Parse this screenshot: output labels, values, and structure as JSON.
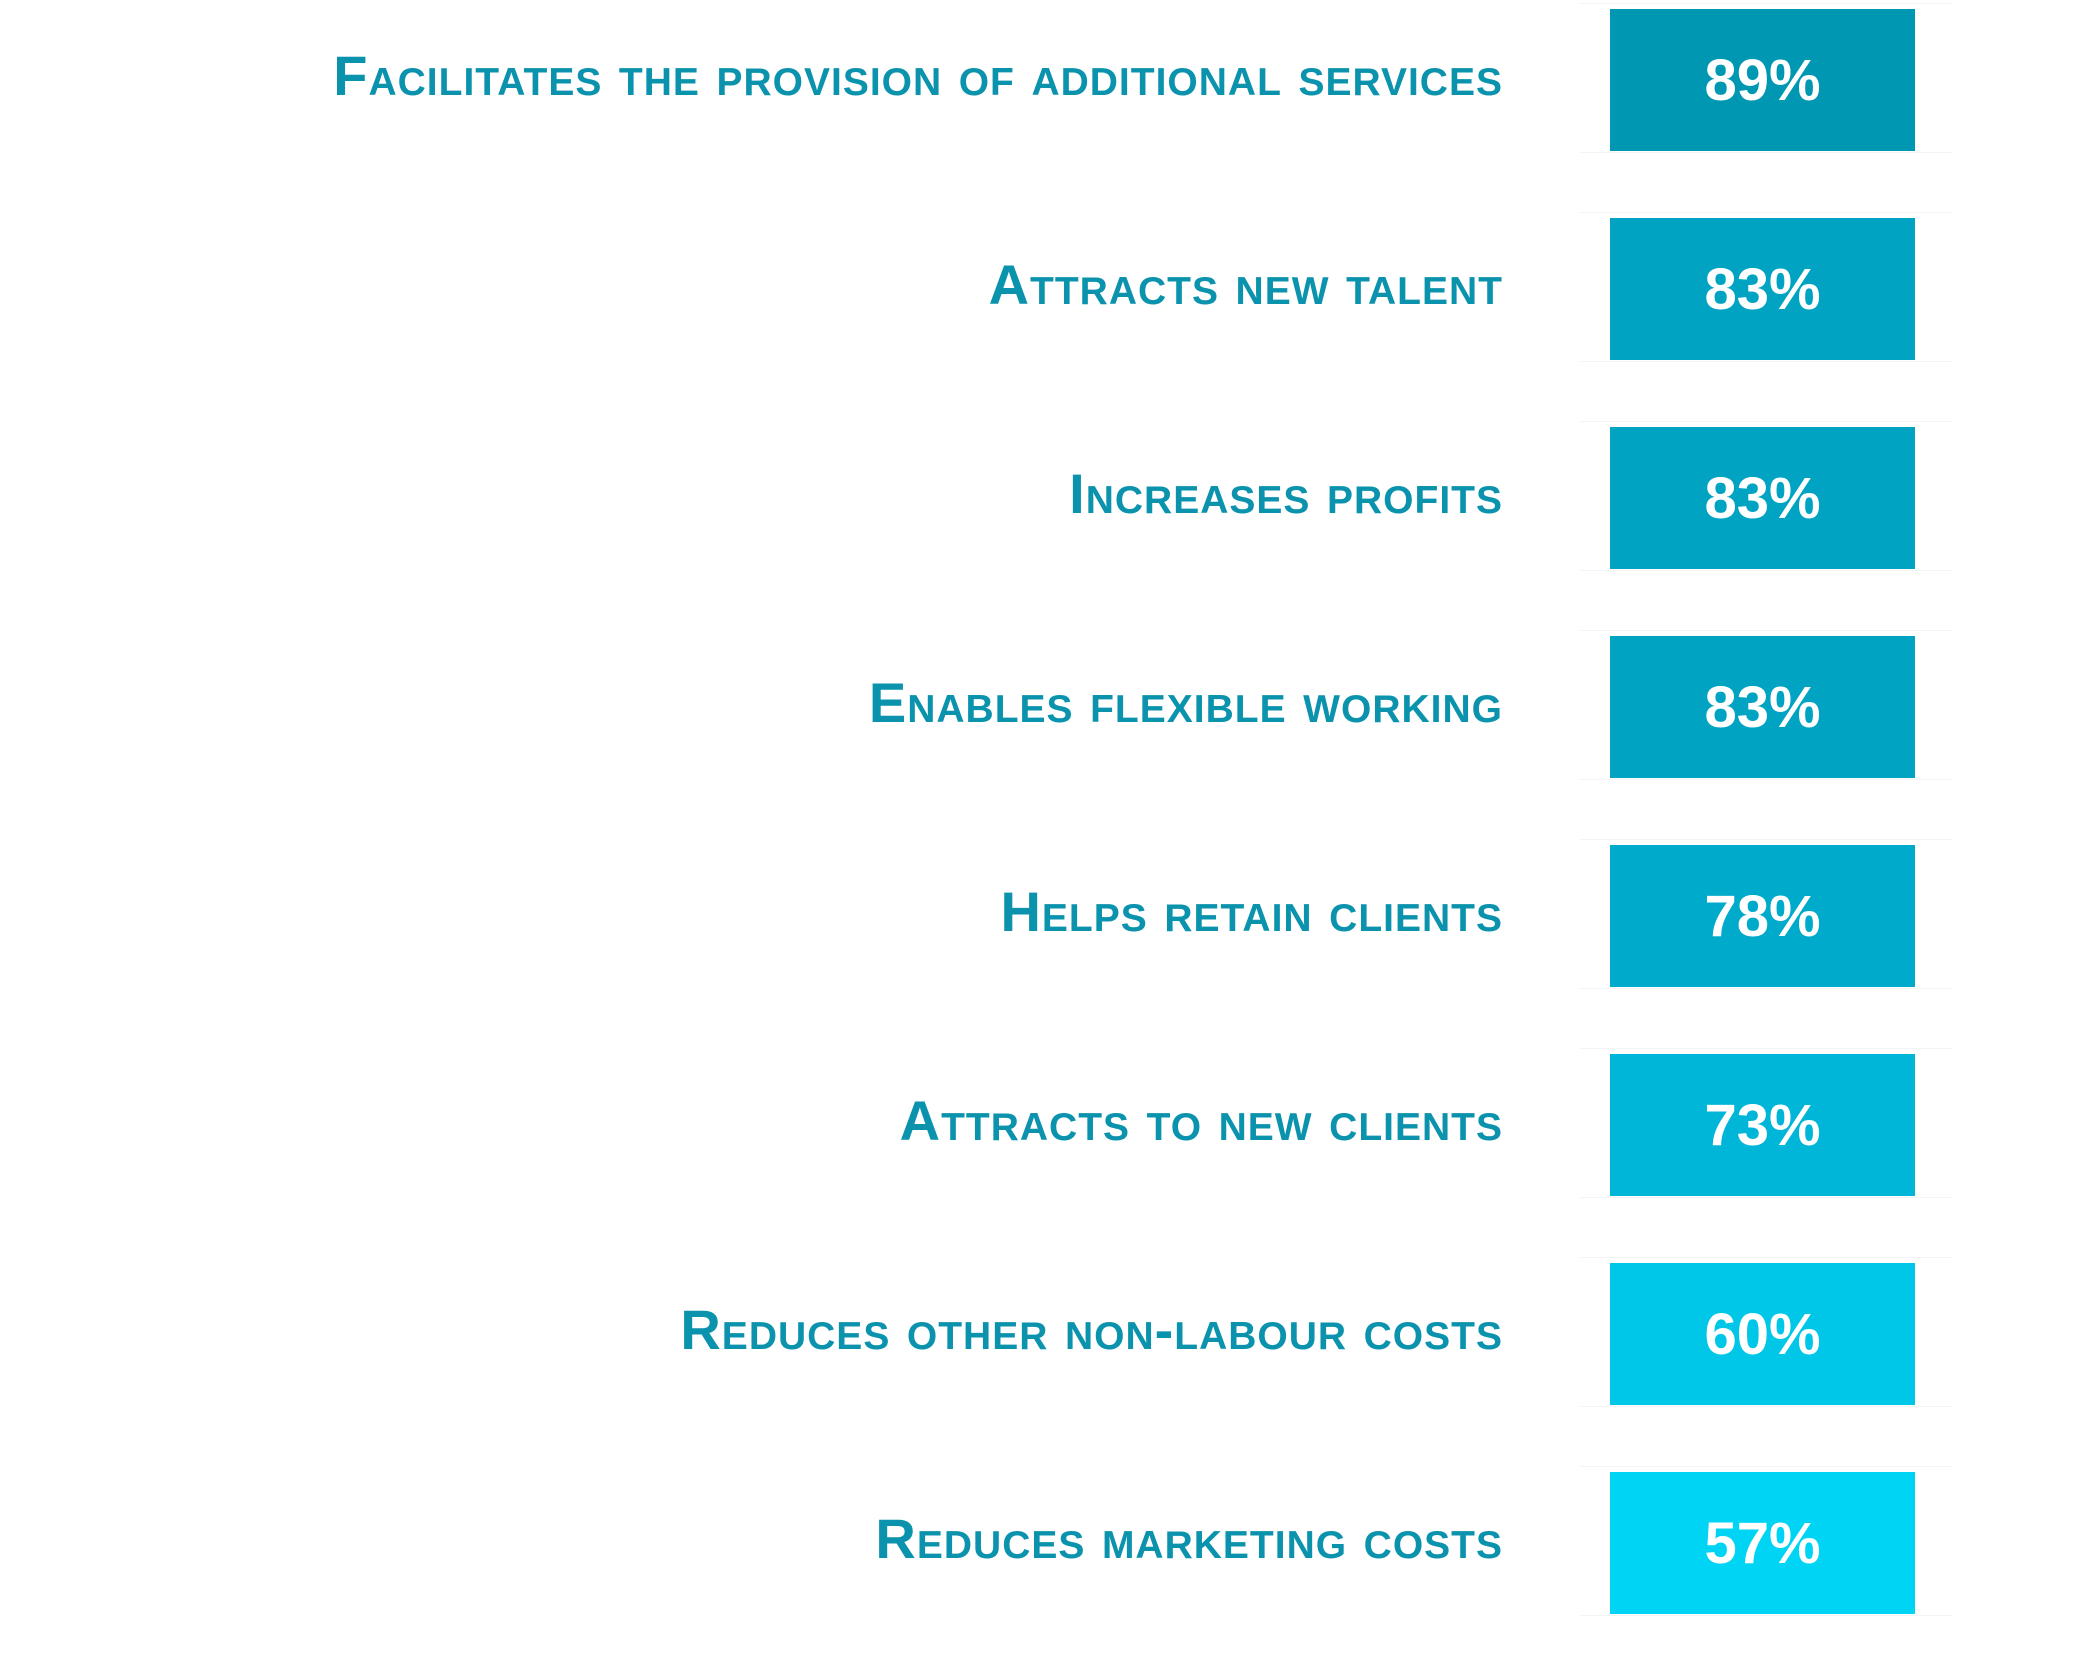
{
  "chart_data": {
    "type": "table",
    "categories": [
      "Facilitates the provision of additional services",
      "Attracts new talent",
      "Increases profits",
      "Enables flexible working",
      "Helps retain clients",
      "Attracts to new clients",
      "Reduces other non-labour costs",
      "Reduces marketing costs"
    ],
    "values": [
      89,
      83,
      83,
      83,
      78,
      73,
      60,
      57
    ],
    "value_labels": [
      "89%",
      "83%",
      "83%",
      "83%",
      "78%",
      "73%",
      "60%",
      "57%"
    ],
    "box_colors": [
      "#0097b2",
      "#00a4c2",
      "#00a4c2",
      "#00a4c2",
      "#00aacb",
      "#00b6d8",
      "#00c6e8",
      "#00d4f5"
    ],
    "label_color": "#0b93ad",
    "value_text_color": "#ffffff"
  }
}
